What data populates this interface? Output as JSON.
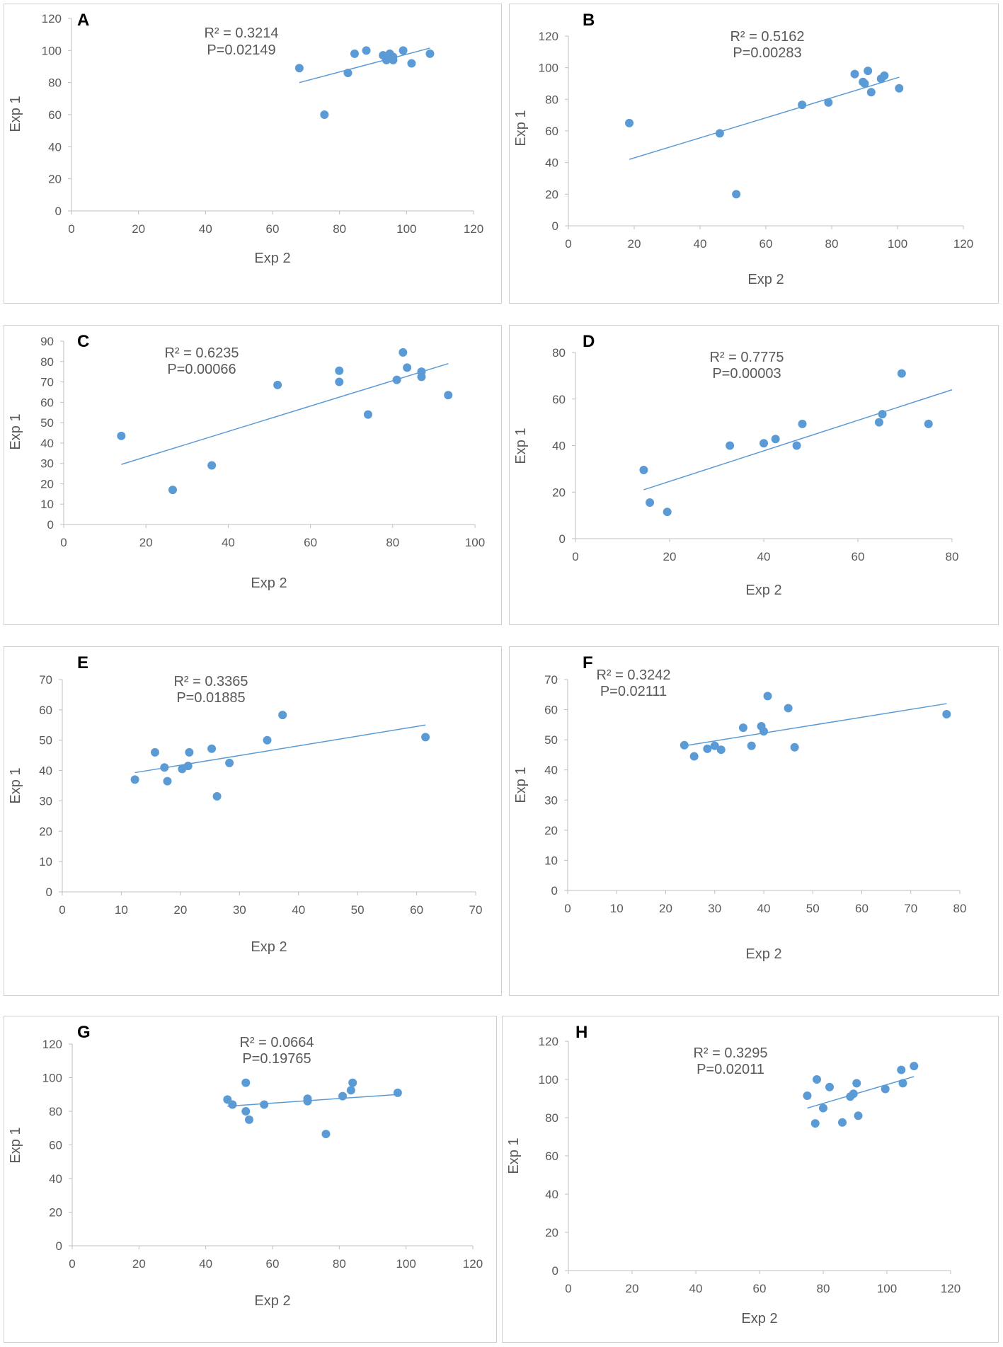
{
  "colors": {
    "point": "#5b9bd5",
    "trend": "#5b9bd5",
    "axis": "#bfbfbf",
    "text": "#595959"
  },
  "chart_data": [
    {
      "type": "scatter",
      "panel": "A",
      "xlabel": "Exp 2",
      "ylabel": "Exp 1",
      "xlim": [
        0,
        120
      ],
      "xticks": [
        0,
        20,
        40,
        60,
        80,
        100,
        120
      ],
      "ylim": [
        0,
        120
      ],
      "yticks": [
        0,
        20,
        40,
        60,
        80,
        100,
        120
      ],
      "r2": "R² = 0.3214",
      "p": "P=0.02149",
      "points": [
        [
          68,
          89
        ],
        [
          75.5,
          60
        ],
        [
          82.5,
          86
        ],
        [
          84.5,
          98
        ],
        [
          88,
          100
        ],
        [
          93,
          97
        ],
        [
          94,
          94
        ],
        [
          95,
          98
        ],
        [
          96,
          96
        ],
        [
          96,
          94
        ],
        [
          99,
          100
        ],
        [
          101.5,
          92
        ],
        [
          107,
          98
        ]
      ],
      "trend": [
        [
          68,
          80
        ],
        [
          107,
          101.5
        ]
      ]
    },
    {
      "type": "scatter",
      "panel": "B",
      "xlabel": "Exp 2",
      "ylabel": "Exp 1",
      "xlim": [
        0,
        120
      ],
      "xticks": [
        0,
        20,
        40,
        60,
        80,
        100,
        120
      ],
      "ylim": [
        0,
        120
      ],
      "yticks": [
        0,
        20,
        40,
        60,
        80,
        100,
        120
      ],
      "r2": "R² = 0.5162",
      "p": "P=0.00283",
      "points": [
        [
          18.5,
          65
        ],
        [
          46,
          58.5
        ],
        [
          51,
          20
        ],
        [
          71,
          76.5
        ],
        [
          79,
          78
        ],
        [
          87,
          96
        ],
        [
          89.5,
          91
        ],
        [
          90,
          90
        ],
        [
          91,
          98
        ],
        [
          92,
          84.5
        ],
        [
          95,
          93
        ],
        [
          96,
          95
        ],
        [
          100.5,
          87
        ]
      ],
      "trend": [
        [
          18.5,
          42
        ],
        [
          100.5,
          94
        ]
      ]
    },
    {
      "type": "scatter",
      "panel": "C",
      "xlabel": "Exp 2",
      "ylabel": "Exp 1",
      "xlim": [
        0,
        100
      ],
      "xticks": [
        0,
        20,
        40,
        60,
        80,
        100
      ],
      "ylim": [
        0,
        90
      ],
      "yticks": [
        0,
        10,
        20,
        30,
        40,
        50,
        60,
        70,
        80,
        90
      ],
      "r2": "R² = 0.6235",
      "p": "P=0.00066",
      "points": [
        [
          14,
          43.5
        ],
        [
          26.5,
          17
        ],
        [
          36,
          29
        ],
        [
          52,
          68.5
        ],
        [
          67,
          75.5
        ],
        [
          67,
          70
        ],
        [
          74,
          54
        ],
        [
          81,
          71
        ],
        [
          82.5,
          84.5
        ],
        [
          83.5,
          77
        ],
        [
          87,
          75
        ],
        [
          87,
          72.5
        ],
        [
          93.5,
          63.5
        ]
      ],
      "trend": [
        [
          14,
          29.5
        ],
        [
          93.5,
          79
        ]
      ]
    },
    {
      "type": "scatter",
      "panel": "D",
      "xlabel": "Exp 2",
      "ylabel": "Exp 1",
      "xlim": [
        0,
        80
      ],
      "xticks": [
        0,
        20,
        40,
        60,
        80
      ],
      "ylim": [
        0,
        80
      ],
      "yticks": [
        0,
        20,
        40,
        60,
        80
      ],
      "r2": "R² = 0.7775",
      "p": "P=0.00003",
      "points": [
        [
          14.5,
          29.5
        ],
        [
          15.8,
          15.5
        ],
        [
          19.5,
          11.5
        ],
        [
          32.8,
          40
        ],
        [
          40,
          41
        ],
        [
          42.5,
          42.8
        ],
        [
          47,
          40
        ],
        [
          48.2,
          49.3
        ],
        [
          64.5,
          50
        ],
        [
          65.2,
          53.5
        ],
        [
          69.3,
          71
        ],
        [
          75,
          49.3
        ]
      ],
      "trend": [
        [
          14.5,
          21
        ],
        [
          80,
          64
        ]
      ]
    },
    {
      "type": "scatter",
      "panel": "E",
      "xlabel": "Exp 2",
      "ylabel": "Exp 1",
      "xlim": [
        0,
        70
      ],
      "xticks": [
        0,
        10,
        20,
        30,
        40,
        50,
        60,
        70
      ],
      "ylim": [
        0,
        70
      ],
      "yticks": [
        0,
        10,
        20,
        30,
        40,
        50,
        60,
        70
      ],
      "r2": "R² = 0.3365",
      "p": "P=0.01885",
      "points": [
        [
          12.3,
          37
        ],
        [
          15.7,
          46
        ],
        [
          17.3,
          41
        ],
        [
          17.8,
          36.5
        ],
        [
          20.3,
          40.5
        ],
        [
          21.3,
          41.5
        ],
        [
          21.5,
          46
        ],
        [
          25.3,
          47.2
        ],
        [
          26.2,
          31.5
        ],
        [
          28.3,
          42.5
        ],
        [
          34.7,
          50
        ],
        [
          37.3,
          58.3
        ],
        [
          61.5,
          51
        ]
      ],
      "trend": [
        [
          12.3,
          39.3
        ],
        [
          61.5,
          55
        ]
      ]
    },
    {
      "type": "scatter",
      "panel": "F",
      "xlabel": "Exp 2",
      "ylabel": "Exp 1",
      "xlim": [
        0,
        80
      ],
      "xticks": [
        0,
        10,
        20,
        30,
        40,
        50,
        60,
        70,
        80
      ],
      "ylim": [
        0,
        70
      ],
      "yticks": [
        0,
        10,
        20,
        30,
        40,
        50,
        60,
        70
      ],
      "r2": "R² = 0.3242",
      "p": "P=0.02111",
      "points": [
        [
          23.8,
          48.2
        ],
        [
          25.8,
          44.5
        ],
        [
          28.5,
          47
        ],
        [
          30,
          48
        ],
        [
          31.3,
          46.7
        ],
        [
          35.8,
          54
        ],
        [
          37.5,
          48
        ],
        [
          39.5,
          54.5
        ],
        [
          40,
          52.8
        ],
        [
          40.8,
          64.5
        ],
        [
          45,
          60.5
        ],
        [
          46.3,
          47.5
        ],
        [
          77.3,
          58.5
        ]
      ],
      "trend": [
        [
          23.8,
          48
        ],
        [
          77.3,
          62
        ]
      ]
    },
    {
      "type": "scatter",
      "panel": "G",
      "xlabel": "Exp 2",
      "ylabel": "Exp 1",
      "xlim": [
        0,
        120
      ],
      "xticks": [
        0,
        20,
        40,
        60,
        80,
        100,
        120
      ],
      "ylim": [
        0,
        120
      ],
      "yticks": [
        0,
        20,
        40,
        60,
        80,
        100,
        120
      ],
      "r2": "R² = 0.0664",
      "p": "P=0.19765",
      "points": [
        [
          46.5,
          87
        ],
        [
          48,
          84
        ],
        [
          52,
          97
        ],
        [
          52,
          80
        ],
        [
          53,
          75
        ],
        [
          57.5,
          84
        ],
        [
          70.5,
          86
        ],
        [
          70.5,
          87.5
        ],
        [
          76,
          66.5
        ],
        [
          81,
          89
        ],
        [
          83.5,
          92.5
        ],
        [
          84,
          97
        ],
        [
          97.5,
          91
        ]
      ],
      "trend": [
        [
          46.5,
          83
        ],
        [
          97.5,
          90
        ]
      ]
    },
    {
      "type": "scatter",
      "panel": "H",
      "xlabel": "Exp 2",
      "ylabel": "Exp 1",
      "xlim": [
        0,
        120
      ],
      "xticks": [
        0,
        20,
        40,
        60,
        80,
        100,
        120
      ],
      "ylim": [
        0,
        120
      ],
      "yticks": [
        0,
        20,
        40,
        60,
        80,
        100,
        120
      ],
      "r2": "R² = 0.3295",
      "p": "P=0.02011",
      "points": [
        [
          75,
          91.5
        ],
        [
          77.5,
          77
        ],
        [
          78,
          100
        ],
        [
          80,
          85
        ],
        [
          82,
          96
        ],
        [
          86,
          77.5
        ],
        [
          88.5,
          91
        ],
        [
          89.5,
          92.5
        ],
        [
          90.5,
          98
        ],
        [
          91,
          81
        ],
        [
          99.5,
          95
        ],
        [
          104.5,
          105
        ],
        [
          105,
          98
        ],
        [
          108.5,
          107
        ]
      ],
      "trend": [
        [
          75,
          85
        ],
        [
          108.5,
          101.5
        ]
      ]
    }
  ]
}
